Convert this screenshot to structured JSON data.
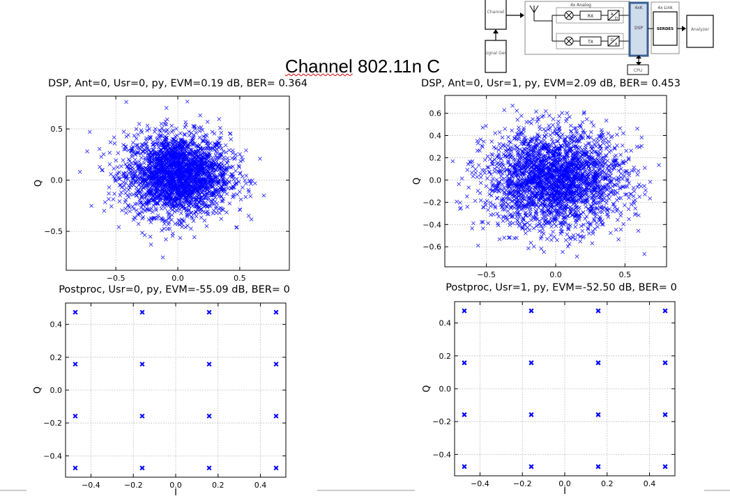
{
  "page": {
    "title_part1": "Channel",
    "title_part2": " 802.11n C"
  },
  "block_diagram": {
    "channel": "Channel",
    "signal_gen": "Signal Gen",
    "analog_header": "4x Analog",
    "rx": "RX",
    "tx": "TX",
    "dsp_header": "4xK",
    "dsp": "DSP",
    "link_header": "4x Link",
    "serdes": "SERDES",
    "analyzer": "Analyzer",
    "cpu": "CPU",
    "adc_top": "A",
    "adc_bottom": "D",
    "dac_top": "D",
    "dac_bottom": "A"
  },
  "chart_data": [
    {
      "type": "scatter",
      "title": "DSP, Ant=0, Usr=0, py, EVM=0.19 dB, BER= 0.364",
      "xlabel": "",
      "ylabel": "Q",
      "xlim": [
        -0.9,
        0.9
      ],
      "ylim": [
        -0.88,
        0.82
      ],
      "xticks": [
        -0.5,
        0.0,
        0.5
      ],
      "xtick_labels": [
        "−0.5",
        "0.0",
        "0.5"
      ],
      "yticks": [
        -0.5,
        0.0,
        0.5
      ],
      "ytick_labels": [
        "−0.5",
        "0.0",
        "0.5"
      ],
      "grid": true,
      "marker": "x",
      "color": "#0000ff",
      "distribution": {
        "center": [
          0.0,
          0.05
        ],
        "spread_x": 0.21,
        "spread_y": 0.2,
        "range_x": [
          -0.82,
          0.82
        ],
        "range_y": [
          -0.8,
          0.78
        ],
        "count": 2600
      }
    },
    {
      "type": "scatter",
      "title": "DSP, Ant=0, Usr=1, py, EVM=2.09 dB, BER= 0.453",
      "xlabel": "",
      "ylabel": "Q",
      "xlim": [
        -0.8,
        0.8
      ],
      "ylim": [
        -0.78,
        0.76
      ],
      "xticks": [
        -0.5,
        0.0,
        0.5
      ],
      "xtick_labels": [
        "−0.5",
        "0.0",
        "0.5"
      ],
      "yticks": [
        -0.6,
        -0.4,
        -0.2,
        0.0,
        0.2,
        0.4,
        0.6
      ],
      "ytick_labels": [
        "−0.6",
        "−0.4",
        "−0.2",
        "0.0",
        "0.2",
        "0.4",
        "0.6"
      ],
      "grid": true,
      "marker": "x",
      "color": "#0000ff",
      "distribution": {
        "center": [
          0.0,
          0.0
        ],
        "spread_x": 0.25,
        "spread_y": 0.22,
        "range_x": [
          -0.75,
          0.75
        ],
        "range_y": [
          -0.72,
          0.72
        ],
        "count": 2600
      }
    },
    {
      "type": "scatter",
      "title": "Postproc, Usr=0, py, EVM=-55.09 dB, BER= 0",
      "xlabel": "I",
      "ylabel": "Q",
      "xlim": [
        -0.52,
        0.52
      ],
      "ylim": [
        -0.53,
        0.53
      ],
      "xticks": [
        -0.4,
        -0.2,
        0.0,
        0.2,
        0.4
      ],
      "xtick_labels": [
        "−0.4",
        "−0.2",
        "0.0",
        "0.2",
        "0.4"
      ],
      "yticks": [
        -0.4,
        -0.2,
        0.0,
        0.2,
        0.4
      ],
      "ytick_labels": [
        "−0.4",
        "−0.2",
        "0.0",
        "0.2",
        "0.4"
      ],
      "grid": true,
      "marker": "x",
      "color": "#0000ff",
      "x": [
        -0.474,
        -0.158,
        0.158,
        0.474,
        -0.474,
        -0.158,
        0.158,
        0.474,
        -0.474,
        -0.158,
        0.158,
        0.474,
        -0.474,
        -0.158,
        0.158,
        0.474
      ],
      "y": [
        0.474,
        0.474,
        0.474,
        0.474,
        0.158,
        0.158,
        0.158,
        0.158,
        -0.158,
        -0.158,
        -0.158,
        -0.158,
        -0.474,
        -0.474,
        -0.474,
        -0.474
      ]
    },
    {
      "type": "scatter",
      "title": "Postproc, Usr=1, py, EVM=-52.50 dB, BER= 0",
      "xlabel": "I",
      "ylabel": "Q",
      "xlim": [
        -0.52,
        0.52
      ],
      "ylim": [
        -0.53,
        0.53
      ],
      "xticks": [
        -0.4,
        -0.2,
        0.0,
        0.2,
        0.4
      ],
      "xtick_labels": [
        "−0.4",
        "−0.2",
        "0.0",
        "0.2",
        "0.4"
      ],
      "yticks": [
        -0.4,
        -0.2,
        0.0,
        0.2,
        0.4
      ],
      "ytick_labels": [
        "−0.4",
        "−0.2",
        "0.0",
        "0.2",
        "0.4"
      ],
      "grid": true,
      "marker": "x",
      "color": "#0000ff",
      "x": [
        -0.474,
        -0.158,
        0.158,
        0.474,
        -0.474,
        -0.158,
        0.158,
        0.474,
        -0.474,
        -0.158,
        0.158,
        0.474,
        -0.474,
        -0.158,
        0.158,
        0.474
      ],
      "y": [
        0.474,
        0.474,
        0.474,
        0.474,
        0.158,
        0.158,
        0.158,
        0.158,
        -0.158,
        -0.158,
        -0.158,
        -0.158,
        -0.474,
        -0.474,
        -0.474,
        -0.474
      ]
    }
  ]
}
